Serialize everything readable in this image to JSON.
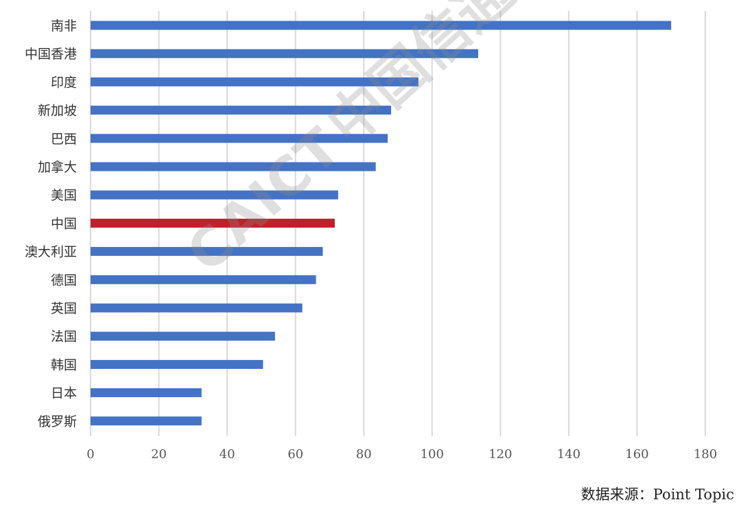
{
  "chart_data": {
    "type": "bar",
    "orientation": "horizontal",
    "categories": [
      "南非",
      "中国香港",
      "印度",
      "新加坡",
      "巴西",
      "加拿大",
      "美国",
      "中国",
      "澳大利亚",
      "德国",
      "英国",
      "法国",
      "韩国",
      "日本",
      "俄罗斯"
    ],
    "values": [
      170,
      113.5,
      96,
      88,
      87,
      83.5,
      72.5,
      71.5,
      68,
      66,
      62,
      54,
      50.5,
      32.5,
      32.5
    ],
    "highlight_category": "中国",
    "xlim": [
      0,
      180
    ],
    "xticks": [
      0,
      20,
      40,
      60,
      80,
      100,
      120,
      140,
      160,
      180
    ],
    "grid": "vertical",
    "title": "",
    "xlabel": "",
    "ylabel": ""
  },
  "colors": {
    "bar": "#4472c4",
    "highlight": "#c0202a",
    "grid": "#d9d9d9"
  },
  "source_note": "数据来源：Point Topic",
  "watermark": {
    "latin": "CAICT",
    "cjk": "中国信通院"
  }
}
